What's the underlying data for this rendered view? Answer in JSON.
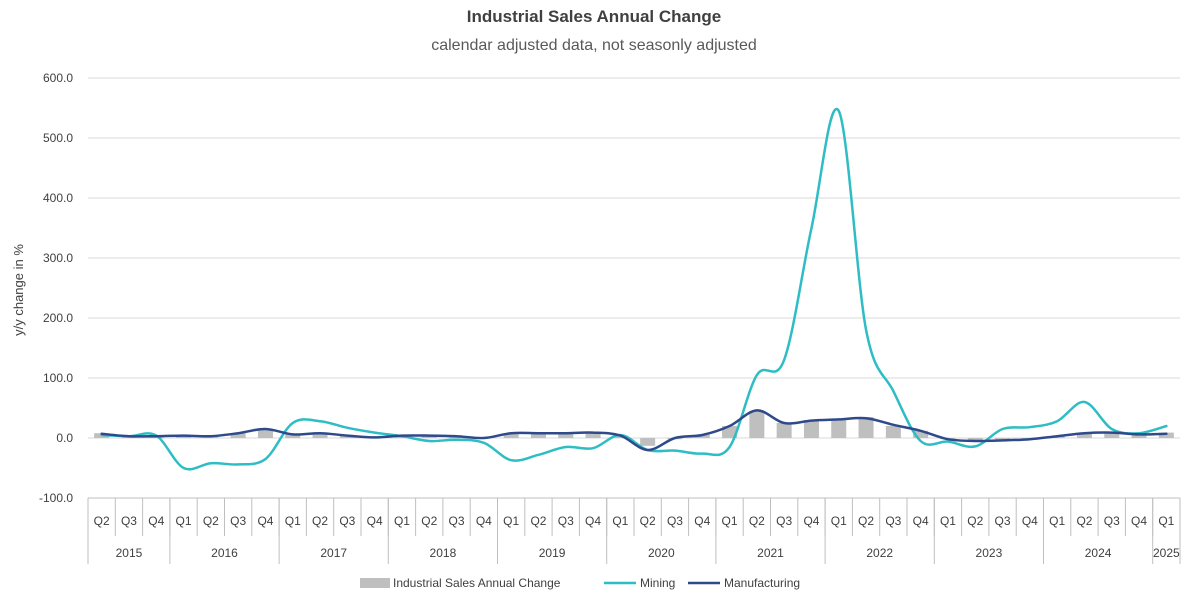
{
  "chart_data": {
    "type": "bar+line",
    "title": "Industrial Sales Annual Change",
    "subtitle": "calendar adjusted data, not seasonly adjusted",
    "xlabel": "",
    "ylabel": "y/y change in %",
    "ylim": [
      -100,
      600
    ],
    "yticks": [
      "-100.0",
      "0.0",
      "100.0",
      "200.0",
      "300.0",
      "400.0",
      "500.0",
      "600.0"
    ],
    "ytick_values": [
      -100,
      0,
      100,
      200,
      300,
      400,
      500,
      600
    ],
    "grid": "horizontal",
    "legend_position": "bottom",
    "quarters": [
      "Q2",
      "Q3",
      "Q4",
      "Q1",
      "Q2",
      "Q3",
      "Q4",
      "Q1",
      "Q2",
      "Q3",
      "Q4",
      "Q1",
      "Q2",
      "Q3",
      "Q4",
      "Q1",
      "Q2",
      "Q3",
      "Q4",
      "Q1",
      "Q2",
      "Q3",
      "Q4",
      "Q1",
      "Q2",
      "Q3",
      "Q4",
      "Q1",
      "Q2",
      "Q3",
      "Q4",
      "Q1",
      "Q2",
      "Q3",
      "Q4",
      "Q1",
      "Q2",
      "Q3",
      "Q4",
      "Q1"
    ],
    "years": [
      {
        "label": "2015",
        "count": 3
      },
      {
        "label": "2016",
        "count": 4
      },
      {
        "label": "2017",
        "count": 4
      },
      {
        "label": "2018",
        "count": 4
      },
      {
        "label": "2019",
        "count": 4
      },
      {
        "label": "2020",
        "count": 4
      },
      {
        "label": "2021",
        "count": 4
      },
      {
        "label": "2022",
        "count": 4
      },
      {
        "label": "2023",
        "count": 4
      },
      {
        "label": "2024",
        "count": 4
      },
      {
        "label": "2025",
        "count": 1
      }
    ],
    "series": [
      {
        "name": "Industrial Sales Annual Change",
        "kind": "bar",
        "color": "#bfbfbf",
        "values": [
          8,
          4,
          4,
          4,
          3,
          8,
          14,
          6,
          8,
          5,
          2,
          3,
          4,
          3,
          1,
          8,
          8,
          8,
          9,
          4,
          -13,
          -2,
          5,
          20,
          45,
          25,
          30,
          32,
          35,
          20,
          12,
          -2,
          -4,
          -3,
          -2,
          3,
          9,
          10,
          6,
          9
        ]
      },
      {
        "name": "Mining",
        "kind": "line",
        "color": "#2ebdc4",
        "values": [
          5,
          3,
          4,
          -50,
          -42,
          -44,
          -35,
          25,
          28,
          17,
          9,
          3,
          -5,
          -3,
          -8,
          -37,
          -28,
          -15,
          -17,
          5,
          -20,
          -21,
          -26,
          -15,
          105,
          130,
          350,
          545,
          180,
          78,
          -5,
          -6,
          -14,
          15,
          18,
          28,
          60,
          15,
          8,
          20
        ]
      },
      {
        "name": "Manufacturing",
        "kind": "line",
        "color": "#2e4a8b",
        "values": [
          7,
          3,
          3,
          4,
          3,
          8,
          15,
          6,
          8,
          4,
          1,
          4,
          4,
          3,
          0,
          8,
          8,
          8,
          9,
          4,
          -20,
          0,
          5,
          20,
          46,
          25,
          29,
          31,
          33,
          22,
          12,
          -2,
          -5,
          -4,
          -2,
          3,
          8,
          9,
          6,
          7
        ]
      }
    ]
  }
}
